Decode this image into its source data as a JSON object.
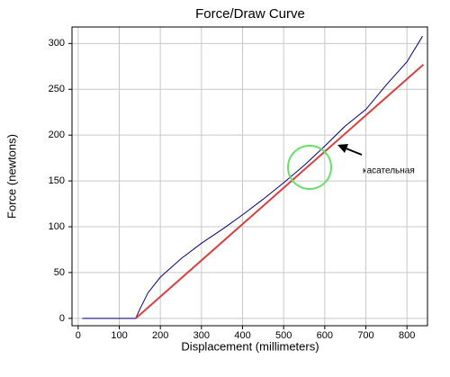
{
  "chart_data": {
    "type": "line",
    "title": "Force/Draw Curve",
    "x_label": "Displacement (millimeters)",
    "y_label": "Force (newtons)",
    "annotation": "касательная",
    "series": [
      {
        "color": "#000080",
        "x": [
          10,
          140,
          150,
          170,
          200,
          250,
          300,
          350,
          400,
          450,
          500,
          550,
          600,
          650,
          700,
          750,
          800,
          838
        ],
        "values": [
          0,
          0,
          10,
          28,
          45,
          65,
          82,
          97,
          113,
          130,
          148,
          167,
          188,
          210,
          228,
          255,
          280,
          308
        ]
      },
      {
        "color": "#d94040",
        "x": [
          140,
          840
        ],
        "values": [
          0,
          277
        ]
      }
    ],
    "xlim": [
      -15,
      850
    ],
    "ylim": [
      -8,
      318
    ],
    "xticks": [
      0,
      100,
      200,
      300,
      400,
      500,
      600,
      700,
      800
    ],
    "yticks": [
      0,
      50,
      100,
      150,
      200,
      250,
      300
    ],
    "grid": true
  }
}
